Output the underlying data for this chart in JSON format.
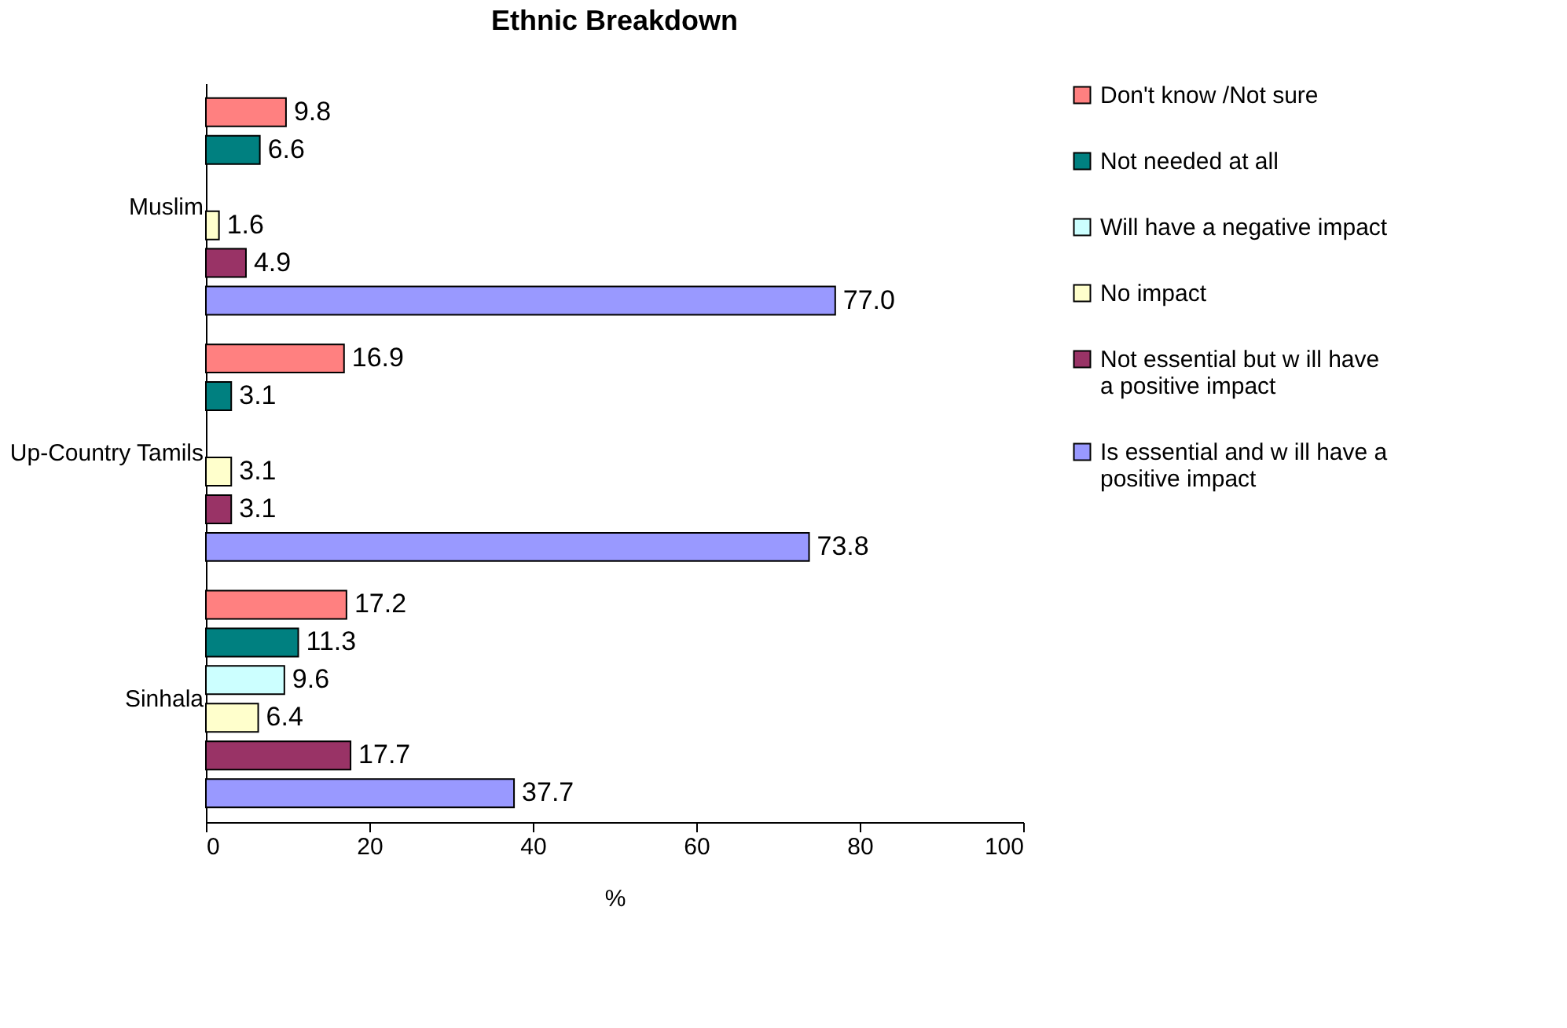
{
  "chart_data": {
    "type": "bar",
    "orientation": "horizontal",
    "title": "Ethnic Breakdown",
    "xlabel": "%",
    "categories": [
      "Muslim",
      "Up-Country Tamils",
      "Sinhala"
    ],
    "series": [
      {
        "name": "Don't know /Not sure",
        "color": "#ff8080",
        "values": [
          9.8,
          16.9,
          17.2
        ],
        "value_labels": [
          "9.8",
          "16.9",
          "17.2"
        ]
      },
      {
        "name": "Not needed at all",
        "color": "#008080",
        "values": [
          6.6,
          3.1,
          11.3
        ],
        "value_labels": [
          "6.6",
          "3.1",
          "11.3"
        ]
      },
      {
        "name": "Will have a negative impact",
        "color": "#ccffff",
        "values": [
          null,
          null,
          9.6
        ],
        "value_labels": [
          null,
          null,
          "9.6"
        ]
      },
      {
        "name": "No impact",
        "color": "#ffffcc",
        "values": [
          1.6,
          3.1,
          6.4
        ],
        "value_labels": [
          "1.6",
          "3.1",
          "6.4"
        ]
      },
      {
        "name": "Not  essential but w ill have a positive impact",
        "color": "#993366",
        "values": [
          4.9,
          3.1,
          17.7
        ],
        "value_labels": [
          "4.9",
          "3.1",
          "17.7"
        ]
      },
      {
        "name": "Is essential and w ill have a positive impact",
        "color": "#9999ff",
        "values": [
          77.0,
          73.8,
          37.7
        ],
        "value_labels": [
          "77.0",
          "73.8",
          "37.7"
        ]
      }
    ],
    "xlim": [
      0,
      100
    ],
    "xticks": [
      0,
      20,
      40,
      60,
      80,
      100
    ],
    "grid": false,
    "legend": "right"
  }
}
